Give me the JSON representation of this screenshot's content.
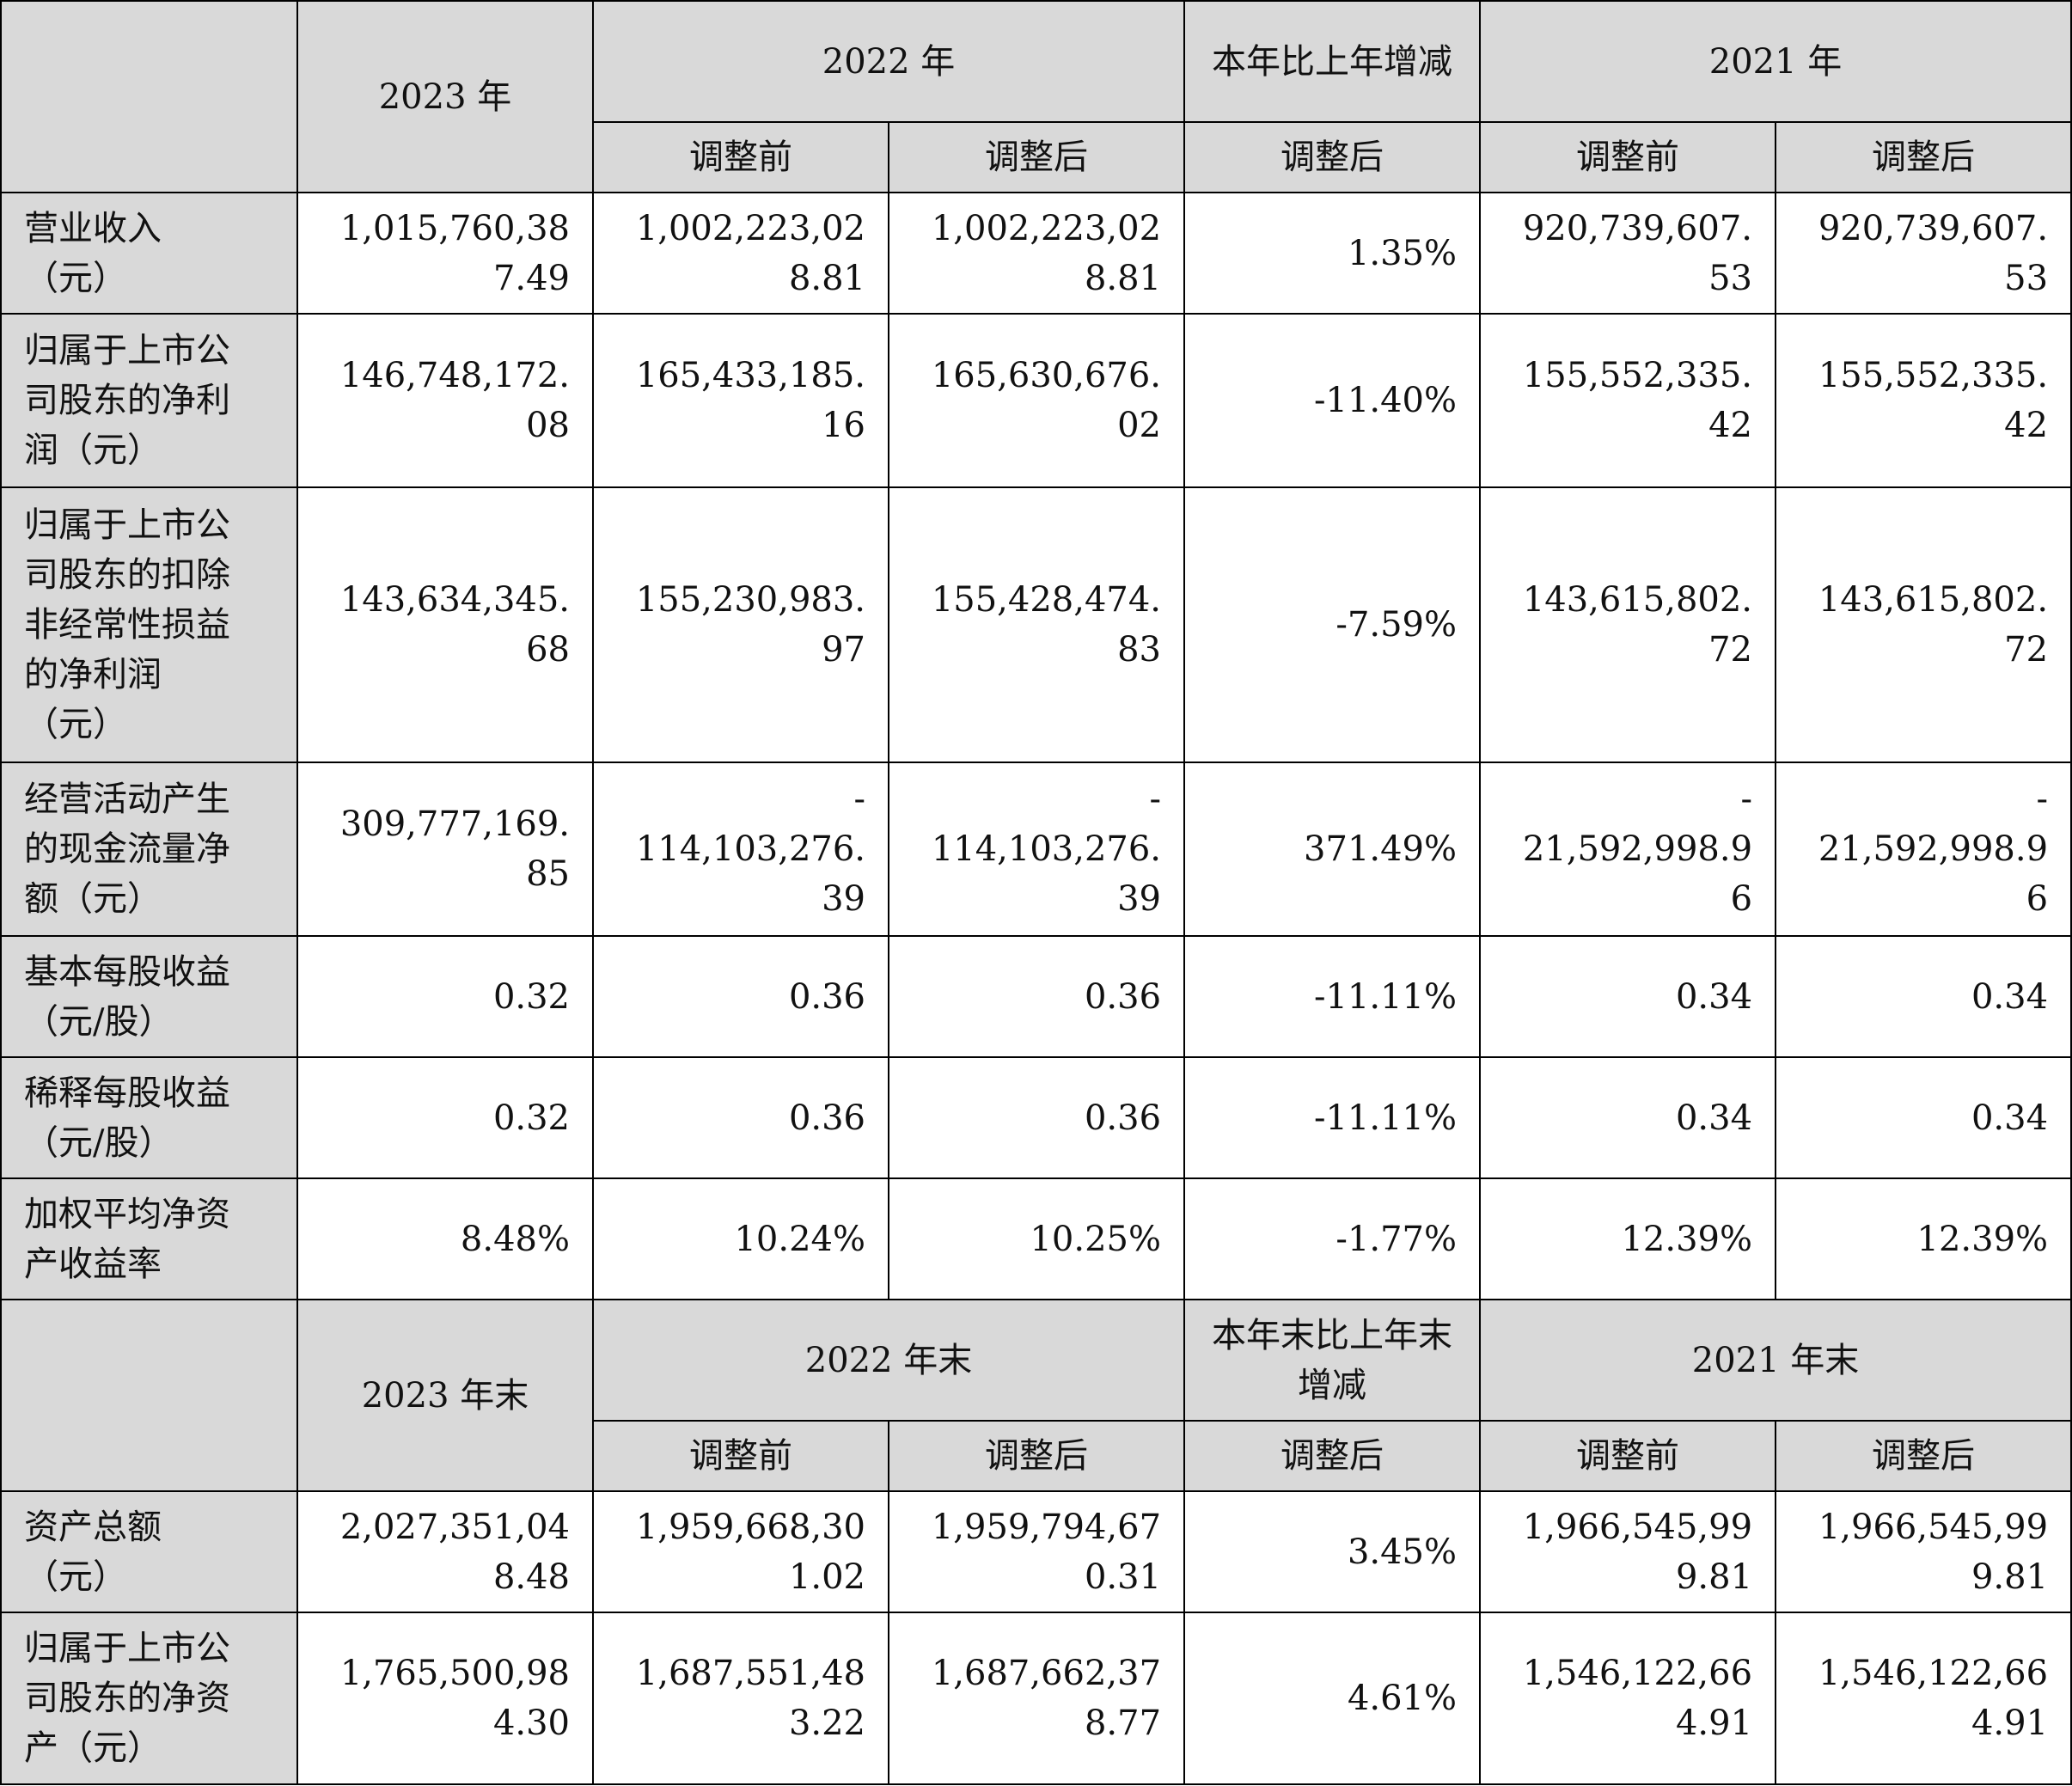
{
  "section1": {
    "header": {
      "col_2023": "2023 年",
      "col_2022": "2022 年",
      "col_change": "本年比上年增减",
      "col_2021": "2021 年",
      "before_adj": "调整前",
      "after_adj": "调整后"
    },
    "rows": [
      {
        "label": "营业收入\n（元）",
        "v2023": "1,015,760,38\n7.49",
        "v2022_before": "1,002,223,02\n8.81",
        "v2022_after": "1,002,223,02\n8.81",
        "change": "1.35%",
        "v2021_before": "920,739,607.\n53",
        "v2021_after": "920,739,607.\n53"
      },
      {
        "label": "归属于上市公\n司股东的净利\n润（元）",
        "v2023": "146,748,172.\n08",
        "v2022_before": "165,433,185.\n16",
        "v2022_after": "165,630,676.\n02",
        "change": "-11.40%",
        "v2021_before": "155,552,335.\n42",
        "v2021_after": "155,552,335.\n42"
      },
      {
        "label": "归属于上市公\n司股东的扣除\n非经常性损益\n的净利润\n（元）",
        "v2023": "143,634,345.\n68",
        "v2022_before": "155,230,983.\n97",
        "v2022_after": "155,428,474.\n83",
        "change": "-7.59%",
        "v2021_before": "143,615,802.\n72",
        "v2021_after": "143,615,802.\n72"
      },
      {
        "label": "经营活动产生\n的现金流量净\n额（元）",
        "v2023": "309,777,169.\n85",
        "v2022_before": "-\n114,103,276.\n39",
        "v2022_after": "-\n114,103,276.\n39",
        "change": "371.49%",
        "v2021_before": "-\n21,592,998.9\n6",
        "v2021_after": "-\n21,592,998.9\n6"
      },
      {
        "label": "基本每股收益\n（元/股）",
        "v2023": "0.32",
        "v2022_before": "0.36",
        "v2022_after": "0.36",
        "change": "-11.11%",
        "v2021_before": "0.34",
        "v2021_after": "0.34"
      },
      {
        "label": "稀释每股收益\n（元/股）",
        "v2023": "0.32",
        "v2022_before": "0.36",
        "v2022_after": "0.36",
        "change": "-11.11%",
        "v2021_before": "0.34",
        "v2021_after": "0.34"
      },
      {
        "label": "加权平均净资\n产收益率",
        "v2023": "8.48%",
        "v2022_before": "10.24%",
        "v2022_after": "10.25%",
        "change": "-1.77%",
        "v2021_before": "12.39%",
        "v2021_after": "12.39%"
      }
    ]
  },
  "section2": {
    "header": {
      "col_2023": "2023 年末",
      "col_2022": "2022 年末",
      "col_change": "本年末比上年末增减",
      "col_2021": "2021 年末",
      "before_adj": "调整前",
      "after_adj": "调整后"
    },
    "rows": [
      {
        "label": "资产总额\n（元）",
        "v2023": "2,027,351,04\n8.48",
        "v2022_before": "1,959,668,30\n1.02",
        "v2022_after": "1,959,794,67\n0.31",
        "change": "3.45%",
        "v2021_before": "1,966,545,99\n9.81",
        "v2021_after": "1,966,545,99\n9.81"
      },
      {
        "label": "归属于上市公\n司股东的净资\n产（元）",
        "v2023": "1,765,500,98\n4.30",
        "v2022_before": "1,687,551,48\n3.22",
        "v2022_after": "1,687,662,37\n8.77",
        "change": "4.61%",
        "v2021_before": "1,546,122,66\n4.91",
        "v2021_after": "1,546,122,66\n4.91"
      }
    ]
  }
}
